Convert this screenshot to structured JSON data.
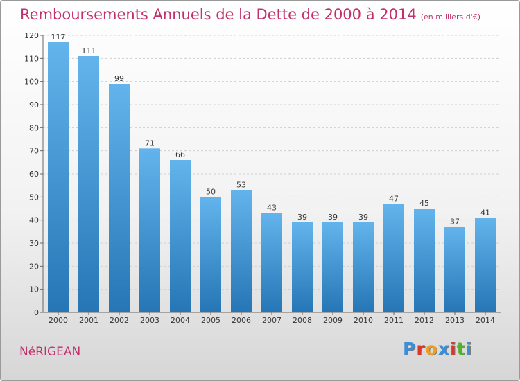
{
  "title": "Remboursements Annuels de la Dette de 2000 à 2014",
  "subtitle": "(en milliers d'€)",
  "town": "NéRIGEAN",
  "brand": {
    "letters": [
      "P",
      "r",
      "o",
      "x",
      "i",
      "t",
      "i"
    ],
    "colors": [
      "#3a8fd6",
      "#e0342c",
      "#f0a020",
      "#3a8fd6",
      "#e0342c",
      "#58b030",
      "#3a8fd6"
    ]
  },
  "chart_data": {
    "type": "bar",
    "categories": [
      "2000",
      "2001",
      "2002",
      "2003",
      "2004",
      "2005",
      "2006",
      "2007",
      "2008",
      "2009",
      "2010",
      "2011",
      "2012",
      "2013",
      "2014"
    ],
    "values": [
      117,
      111,
      99,
      71,
      66,
      50,
      53,
      43,
      39,
      39,
      39,
      47,
      45,
      37,
      41
    ],
    "ylim": [
      0,
      120
    ],
    "yticks": [
      0,
      10,
      20,
      30,
      40,
      50,
      60,
      70,
      80,
      90,
      100,
      110,
      120
    ],
    "grid": true,
    "bar_color_top": "#63b3ec",
    "bar_color_bottom": "#2676b6"
  }
}
